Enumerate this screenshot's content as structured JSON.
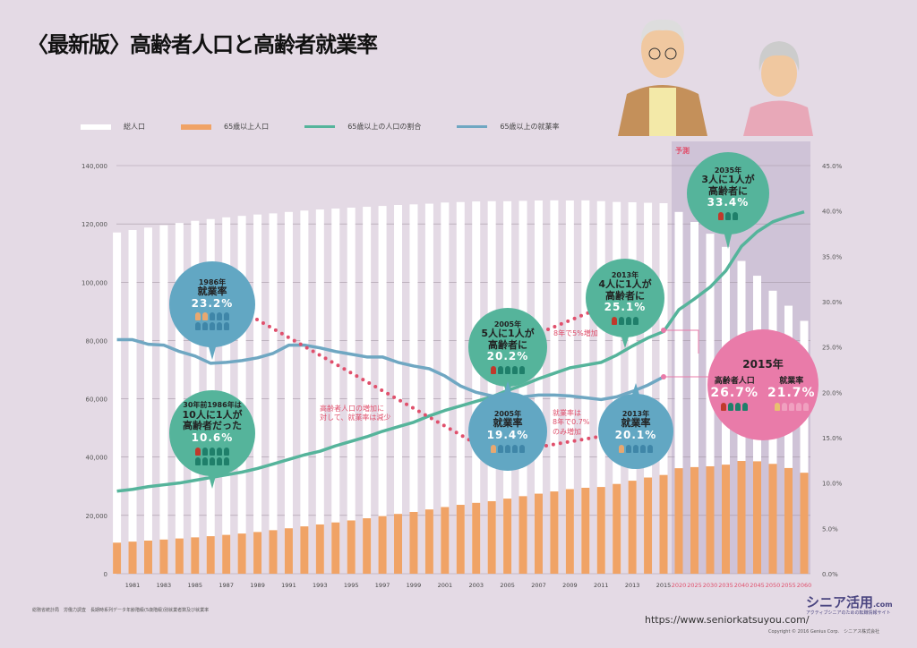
{
  "title": "〈最新版〉高齢者人口と高齢者就業率",
  "legend": [
    {
      "label": "総人口",
      "color": "#ffffff"
    },
    {
      "label": "65歳以上人口",
      "color": "#f0a366"
    },
    {
      "label": "65歳以上の人口の割合",
      "color": "#55b49b"
    },
    {
      "label": "65歳以上の就業率",
      "color": "#6fa7c2"
    }
  ],
  "forecast_label": "予測",
  "bubbles": {
    "b1986emp": {
      "year": "1986年",
      "main": "就業率",
      "pct": "23.2%"
    },
    "b1986ratio": {
      "year": "30年前1986年は",
      "main": "10人に1人が\n高齢者だった",
      "pct": "10.6%"
    },
    "b2005ratio": {
      "year": "2005年",
      "main": "5人に1人が\n高齢者に",
      "pct": "20.2%"
    },
    "b2005emp": {
      "year": "2005年",
      "main": "就業率",
      "pct": "19.4%"
    },
    "b2013ratio": {
      "year": "2013年",
      "main": "4人に1人が\n高齢者に",
      "pct": "25.1%"
    },
    "b2013emp": {
      "year": "2013年",
      "main": "就業率",
      "pct": "20.1%"
    },
    "b2035": {
      "year": "2035年",
      "main": "3人に1人が\n高齢者に",
      "pct": "33.4%"
    },
    "b2015": {
      "year": "2015年",
      "left_label": "高齢者人口",
      "left_pct": "26.7%",
      "right_label": "就業率",
      "right_pct": "21.7%"
    }
  },
  "notes": {
    "decline": "高齢者人口の増加に\n対して、就業率は減少",
    "ratio_up": "8年で5%増加",
    "emp_up": "就業率は\n8年で0.7%\nのみ増加"
  },
  "footer": {
    "source": "総務省統計局　労働力調査　長期時系列データ年齢階級(5歳階級)別就業者数及び就業率",
    "url": "https://www.seniorkatsuyou.com/",
    "logo": "シニア活用",
    "logo_suffix": ".com",
    "tagline": "アクティブシニアのための転職情報サイト",
    "copyright": "Copyright © 2016 Genius Corp.　シニアス株式会社"
  },
  "chart_data": {
    "type": "bar+line",
    "title": "〈最新版〉高齢者人口と高齢者就業率",
    "years": [
      1980,
      1981,
      1982,
      1983,
      1984,
      1985,
      1986,
      1987,
      1988,
      1989,
      1990,
      1991,
      1992,
      1993,
      1994,
      1995,
      1996,
      1997,
      1998,
      1999,
      2000,
      2001,
      2002,
      2003,
      2004,
      2005,
      2006,
      2007,
      2008,
      2009,
      2010,
      2011,
      2012,
      2013,
      2014,
      2015,
      2020,
      2025,
      2030,
      2035,
      2040,
      2045,
      2050,
      2055,
      2060
    ],
    "x_tick_labels": [
      "1981",
      "1983",
      "1985",
      "1987",
      "1989",
      "1991",
      "1993",
      "1995",
      "1997",
      "1999",
      "2001",
      "2003",
      "2005",
      "2007",
      "2009",
      "2011",
      "2013",
      "2015",
      "2020",
      "2025",
      "2030",
      "2035",
      "2040",
      "2045",
      "2050",
      "2055",
      "2060"
    ],
    "y_left_ticks": [
      "0",
      "20,000",
      "40,000",
      "60,000",
      "80,000",
      "100,000",
      "120,000",
      "140,000"
    ],
    "y_right_ticks": [
      "0.0%",
      "5.0%",
      "10.0%",
      "15.0%",
      "20.0%",
      "25.0%",
      "30.0%",
      "35.0%",
      "40.0%",
      "45.0%"
    ],
    "ylim_left": [
      0,
      140000
    ],
    "ylim_right": [
      0,
      45
    ],
    "series": [
      {
        "name": "総人口",
        "type": "bar",
        "values": [
          117060,
          117900,
          118730,
          119540,
          120310,
          121050,
          121660,
          122240,
          122750,
          123210,
          123610,
          124100,
          124570,
          124940,
          125270,
          125570,
          125860,
          126160,
          126490,
          126690,
          126930,
          127320,
          127490,
          127690,
          127790,
          127770,
          127900,
          128030,
          128080,
          128030,
          128060,
          127800,
          127520,
          127410,
          127240,
          127100,
          124100,
          120660,
          116620,
          112120,
          107280,
          102210,
          97080,
          91930,
          86740
        ]
      },
      {
        "name": "65歳以上人口",
        "type": "bar",
        "values": [
          10650,
          11010,
          11360,
          11720,
          12090,
          12470,
          12870,
          13320,
          13780,
          14310,
          14930,
          15580,
          16240,
          16900,
          17590,
          18280,
          19020,
          19760,
          20510,
          21190,
          22040,
          22870,
          23630,
          24310,
          24880,
          25760,
          26600,
          27460,
          28220,
          29010,
          29480,
          29750,
          30790,
          31900,
          33000,
          33870,
          36190,
          36570,
          36850,
          37410,
          38680,
          38560,
          37680,
          36260,
          34640
        ]
      },
      {
        "name": "65歳以上の人口の割合",
        "type": "line",
        "axis": "right",
        "values": [
          9.1,
          9.3,
          9.6,
          9.8,
          10.0,
          10.3,
          10.6,
          10.9,
          11.2,
          11.6,
          12.1,
          12.6,
          13.1,
          13.5,
          14.1,
          14.6,
          15.1,
          15.7,
          16.2,
          16.7,
          17.4,
          18.0,
          18.5,
          19.0,
          19.5,
          20.2,
          20.8,
          21.5,
          22.1,
          22.7,
          23.0,
          23.3,
          24.1,
          25.1,
          26.0,
          26.7,
          29.1,
          30.3,
          31.6,
          33.4,
          36.1,
          37.7,
          38.8,
          39.4,
          39.9
        ]
      },
      {
        "name": "65歳以上の就業率",
        "type": "line",
        "axis": "right",
        "values": [
          25.8,
          25.8,
          25.3,
          25.2,
          24.5,
          24.0,
          23.2,
          23.3,
          23.5,
          23.8,
          24.3,
          25.2,
          25.2,
          24.9,
          24.5,
          24.2,
          23.9,
          23.9,
          23.3,
          22.9,
          22.6,
          21.8,
          20.7,
          20.0,
          19.6,
          19.4,
          19.5,
          19.7,
          19.7,
          19.6,
          19.4,
          19.2,
          19.5,
          20.1,
          20.8,
          21.7
        ]
      }
    ],
    "forecast_from": 2020,
    "grid": true,
    "legend_position": "top-left"
  }
}
